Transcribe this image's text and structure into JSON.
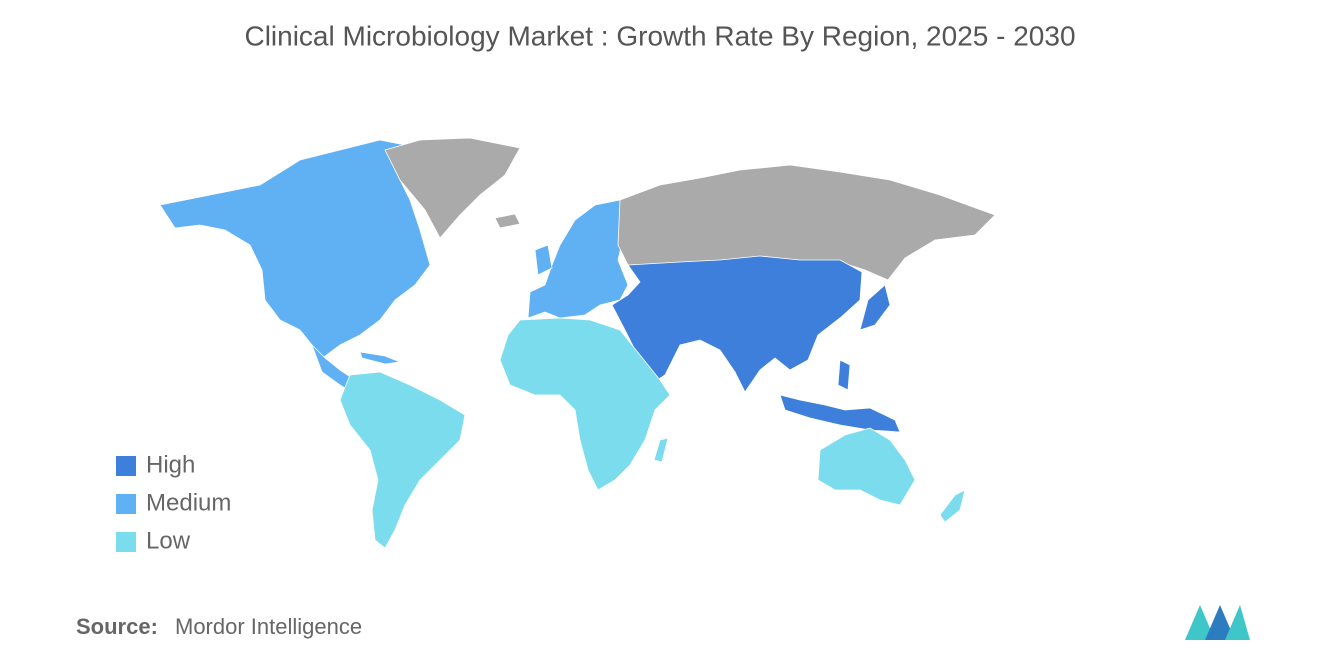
{
  "title": "Clinical Microbiology Market : Growth Rate By Region, 2025 - 2030",
  "legend": [
    {
      "label": "High",
      "color": "#3d7fdb"
    },
    {
      "label": "Medium",
      "color": "#60b0f4"
    },
    {
      "label": "Low",
      "color": "#7bdcee"
    }
  ],
  "no_data_color": "#aaaaaa",
  "source": {
    "label": "Source:",
    "text": "Mordor Intelligence"
  }
}
